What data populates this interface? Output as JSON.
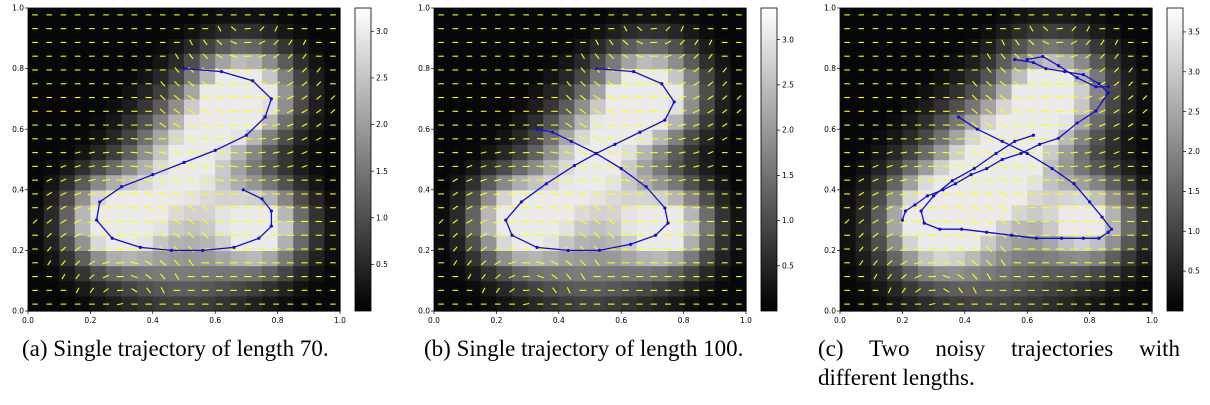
{
  "panels": [
    {
      "id": "a",
      "caption": "(a) Single trajectory of length 70.",
      "cbar_ticks": [
        0.5,
        1.0,
        1.5,
        2.0,
        2.5,
        3.0
      ],
      "cbar_max": 3.25
    },
    {
      "id": "b",
      "caption": "(b) Single trajectory of length 100.",
      "cbar_ticks": [
        0.5,
        1.0,
        1.5,
        2.0,
        2.5,
        3.0
      ],
      "cbar_max": 3.35
    },
    {
      "id": "c",
      "caption": "(c) Two noisy trajectories with different lengths.",
      "cbar_ticks": [
        0.5,
        1.0,
        1.5,
        2.0,
        2.5,
        3.0,
        3.5
      ],
      "cbar_max": 3.8
    }
  ],
  "chart_data": [
    {
      "type": "heatmap",
      "title": "",
      "xlim": [
        0,
        1
      ],
      "ylim": [
        0,
        1
      ],
      "xticks": [
        "0.0",
        "0.2",
        "0.4",
        "0.6",
        "0.8",
        "1.0"
      ],
      "yticks": [
        "0.0",
        "0.2",
        "0.4",
        "0.6",
        "0.8",
        "1.0"
      ],
      "colormap": "gray",
      "vector_field_color": "#ffff00",
      "trajectory_color": "#1010d0",
      "series": [
        {
          "x": [
            0.5,
            0.62,
            0.72,
            0.78,
            0.76,
            0.7,
            0.6,
            0.5,
            0.4,
            0.3,
            0.23,
            0.22,
            0.27,
            0.36,
            0.46,
            0.56,
            0.66,
            0.74,
            0.78,
            0.78,
            0.75,
            0.69
          ],
          "y": [
            0.8,
            0.79,
            0.76,
            0.7,
            0.64,
            0.58,
            0.53,
            0.49,
            0.45,
            0.41,
            0.36,
            0.3,
            0.24,
            0.21,
            0.2,
            0.2,
            0.21,
            0.24,
            0.28,
            0.33,
            0.37,
            0.4
          ]
        }
      ]
    },
    {
      "type": "heatmap",
      "title": "",
      "xlim": [
        0,
        1
      ],
      "ylim": [
        0,
        1
      ],
      "xticks": [
        "0.0",
        "0.2",
        "0.4",
        "0.6",
        "0.8",
        "1.0"
      ],
      "yticks": [
        "0.0",
        "0.2",
        "0.4",
        "0.6",
        "0.8",
        "1.0"
      ],
      "colormap": "gray",
      "vector_field_color": "#ffff00",
      "trajectory_color": "#1010d0",
      "series": [
        {
          "x": [
            0.52,
            0.64,
            0.73,
            0.77,
            0.74,
            0.66,
            0.58,
            0.52,
            0.45,
            0.36,
            0.28,
            0.23,
            0.25,
            0.33,
            0.43,
            0.53,
            0.63,
            0.71,
            0.75,
            0.74,
            0.68,
            0.6,
            0.52,
            0.44,
            0.38,
            0.33
          ],
          "y": [
            0.8,
            0.79,
            0.75,
            0.69,
            0.63,
            0.59,
            0.55,
            0.52,
            0.48,
            0.42,
            0.36,
            0.3,
            0.25,
            0.21,
            0.2,
            0.2,
            0.22,
            0.25,
            0.29,
            0.34,
            0.41,
            0.47,
            0.52,
            0.56,
            0.59,
            0.6
          ]
        }
      ]
    },
    {
      "type": "heatmap",
      "title": "",
      "xlim": [
        0,
        1
      ],
      "ylim": [
        0,
        1
      ],
      "xticks": [
        "0.0",
        "0.2",
        "0.4",
        "0.6",
        "0.8",
        "1.0"
      ],
      "yticks": [
        "0.0",
        "0.2",
        "0.4",
        "0.6",
        "0.8",
        "1.0"
      ],
      "colormap": "gray",
      "vector_field_color": "#ffff00",
      "trajectory_color": "#1010d0",
      "series": [
        {
          "x": [
            0.56,
            0.62,
            0.66,
            0.72,
            0.78,
            0.83,
            0.86,
            0.82,
            0.76,
            0.7,
            0.64,
            0.58,
            0.52,
            0.47,
            0.42,
            0.37,
            0.33,
            0.28,
            0.24,
            0.21,
            0.2
          ],
          "y": [
            0.83,
            0.82,
            0.8,
            0.79,
            0.78,
            0.75,
            0.72,
            0.66,
            0.62,
            0.57,
            0.55,
            0.52,
            0.5,
            0.47,
            0.45,
            0.42,
            0.4,
            0.38,
            0.35,
            0.33,
            0.3
          ]
        },
        {
          "x": [
            0.38,
            0.44,
            0.52,
            0.6,
            0.68,
            0.75,
            0.8,
            0.84,
            0.87,
            0.86,
            0.83,
            0.78,
            0.71,
            0.63,
            0.55,
            0.47,
            0.39,
            0.32,
            0.27,
            0.26,
            0.3,
            0.36,
            0.43,
            0.5,
            0.56,
            0.62
          ],
          "y": [
            0.64,
            0.6,
            0.56,
            0.52,
            0.47,
            0.42,
            0.36,
            0.31,
            0.27,
            0.26,
            0.24,
            0.24,
            0.24,
            0.24,
            0.25,
            0.26,
            0.27,
            0.27,
            0.29,
            0.33,
            0.38,
            0.43,
            0.47,
            0.52,
            0.56,
            0.58
          ]
        },
        {
          "x": [
            0.6,
            0.65,
            0.7,
            0.76,
            0.82,
            0.86
          ],
          "y": [
            0.83,
            0.84,
            0.81,
            0.77,
            0.74,
            0.74
          ]
        }
      ]
    }
  ]
}
